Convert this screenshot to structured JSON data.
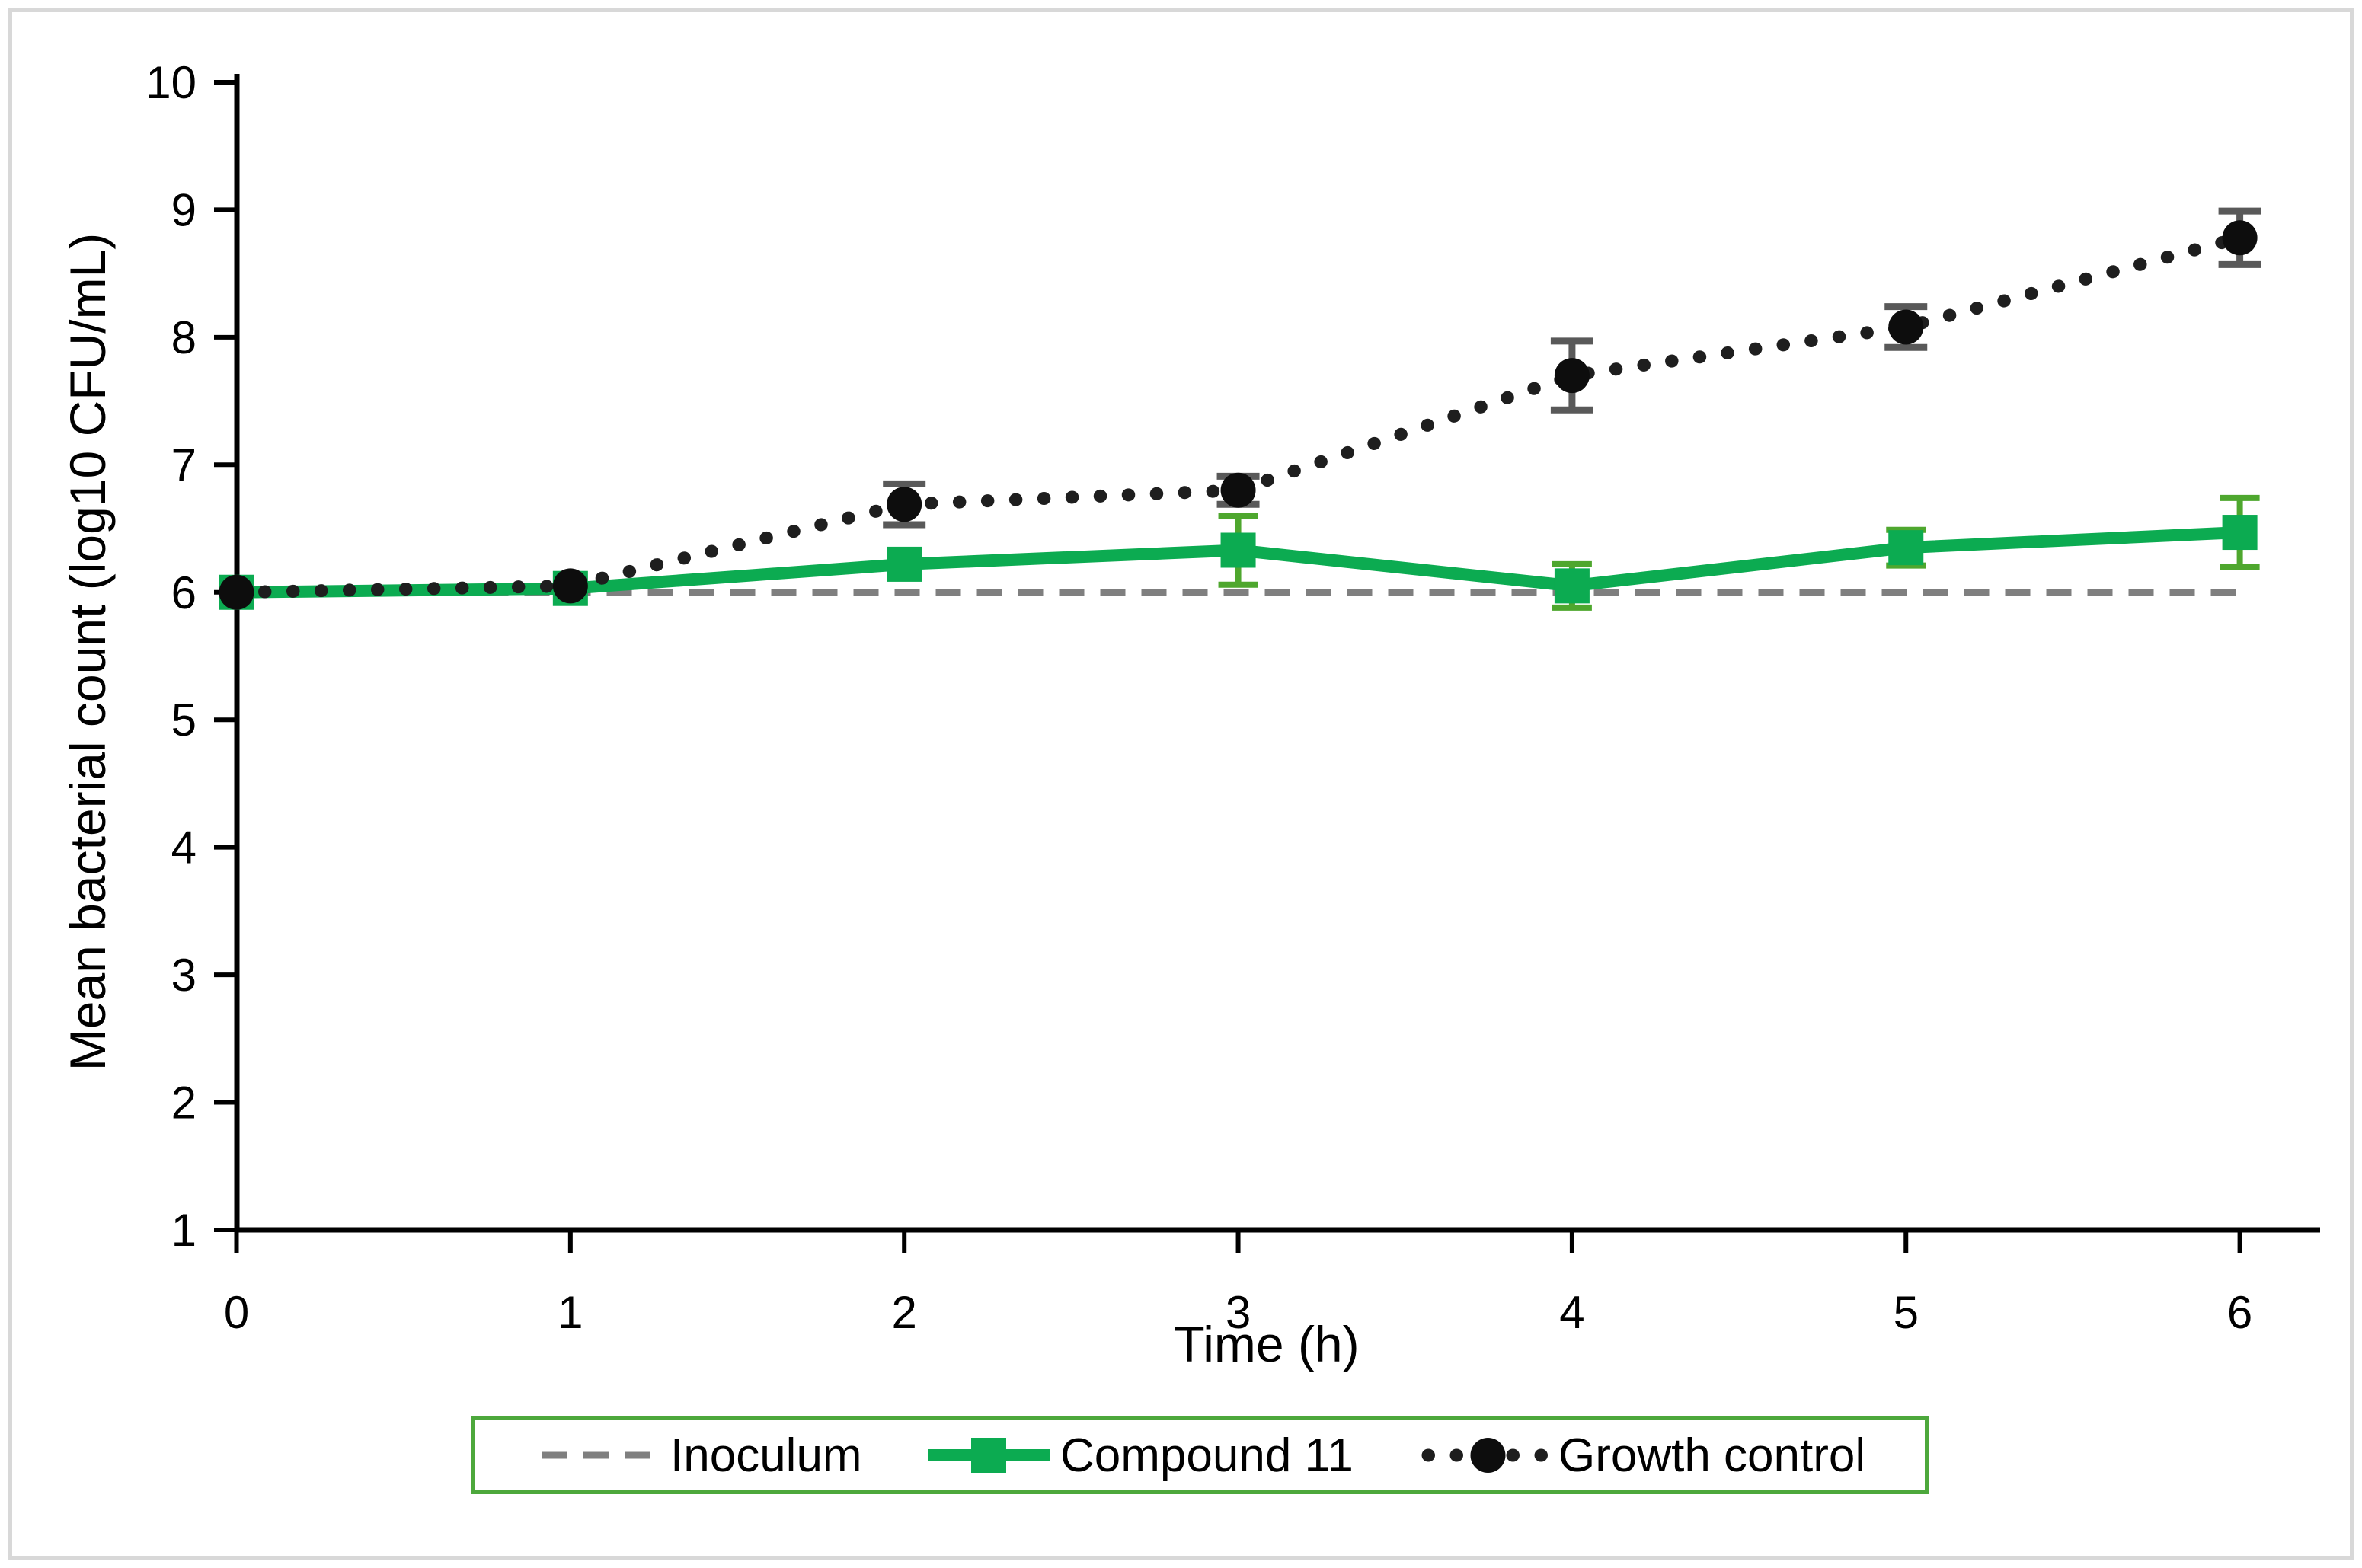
{
  "chart_data": {
    "type": "line",
    "title": "",
    "xlabel": "Time (h)",
    "ylabel": "Mean bacterial count (log10 CFU/mL)",
    "x": [
      0,
      1,
      2,
      3,
      4,
      5,
      6
    ],
    "x_tick_labels": [
      "0",
      "1",
      "2",
      "3",
      "4",
      "5",
      "6"
    ],
    "y_ticks": [
      1,
      2,
      3,
      4,
      5,
      6,
      7,
      8,
      9,
      10
    ],
    "y_tick_labels": [
      "1",
      "2",
      "3",
      "4",
      "5",
      "6",
      "7",
      "8",
      "9",
      "10"
    ],
    "xlim": [
      0,
      6
    ],
    "ylim": [
      1,
      10
    ],
    "grid": false,
    "legend_position": "bottom",
    "series": [
      {
        "name": "Inoculum",
        "style": "dashed",
        "marker": "none",
        "color": "#7F7F7F",
        "err_color": "#7F7F7F",
        "values": [
          6.0,
          6.0,
          6.0,
          6.0,
          6.0,
          6.0,
          6.0
        ],
        "err": [
          0,
          0,
          0,
          0,
          0,
          0,
          0
        ]
      },
      {
        "name": "Compound 11",
        "style": "solid",
        "marker": "square",
        "color": "#0CAB51",
        "err_color": "#4EA72E",
        "values": [
          6.0,
          6.03,
          6.22,
          6.33,
          6.05,
          6.35,
          6.47
        ],
        "err": [
          0,
          0,
          0,
          0.27,
          0.17,
          0.14,
          0.27
        ]
      },
      {
        "name": "Growth control",
        "style": "dotted",
        "marker": "circle",
        "color": "#1E1E1E",
        "err_color": "#595959",
        "values": [
          6.0,
          6.05,
          6.69,
          6.8,
          7.7,
          8.08,
          8.78
        ],
        "err": [
          0,
          0,
          0.16,
          0.11,
          0.27,
          0.16,
          0.21
        ]
      }
    ],
    "legend": [
      "Inoculum",
      "Compound 11",
      "Growth control"
    ],
    "legend_border_color": "#4DA83C"
  }
}
